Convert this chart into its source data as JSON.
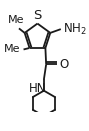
{
  "bg_color": "#ffffff",
  "line_color": "#1a1a1a",
  "line_width": 1.3,
  "font_size": 8.5,
  "figsize": [
    0.89,
    1.31
  ],
  "dpi": 100,
  "xlim": [
    -2.5,
    2.8
  ],
  "ylim": [
    -4.2,
    2.0
  ]
}
